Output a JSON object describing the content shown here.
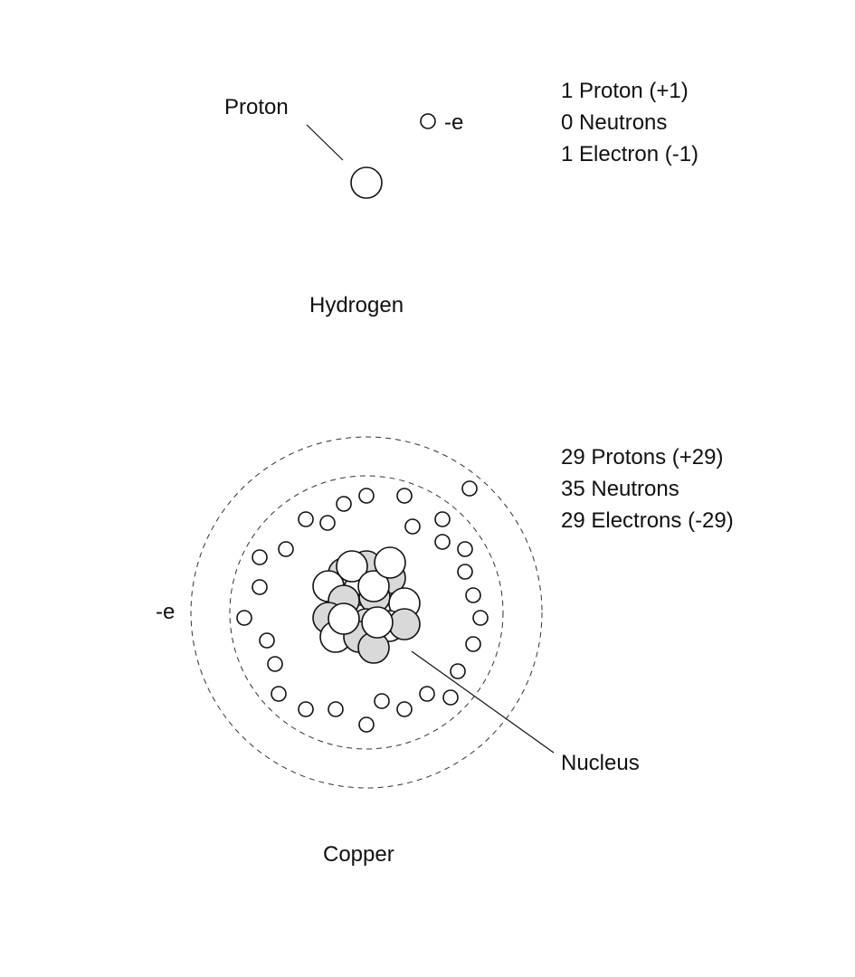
{
  "hydrogen": {
    "name": "Hydrogen",
    "proton_label": "Proton",
    "electron_label": "-e",
    "counts": [
      "1 Proton (+1)",
      "0 Neutrons",
      "1 Electron (-1)"
    ]
  },
  "copper": {
    "name": "Copper",
    "electron_label": "-e",
    "nucleus_label": "Nucleus",
    "counts": [
      "29 Protons (+29)",
      "35 Neutrons",
      "29 Electrons (-29)"
    ]
  },
  "colors": {
    "proton_fill": "#ffffff",
    "neutron_fill": "#d9d9d9",
    "stroke": "#111111"
  }
}
